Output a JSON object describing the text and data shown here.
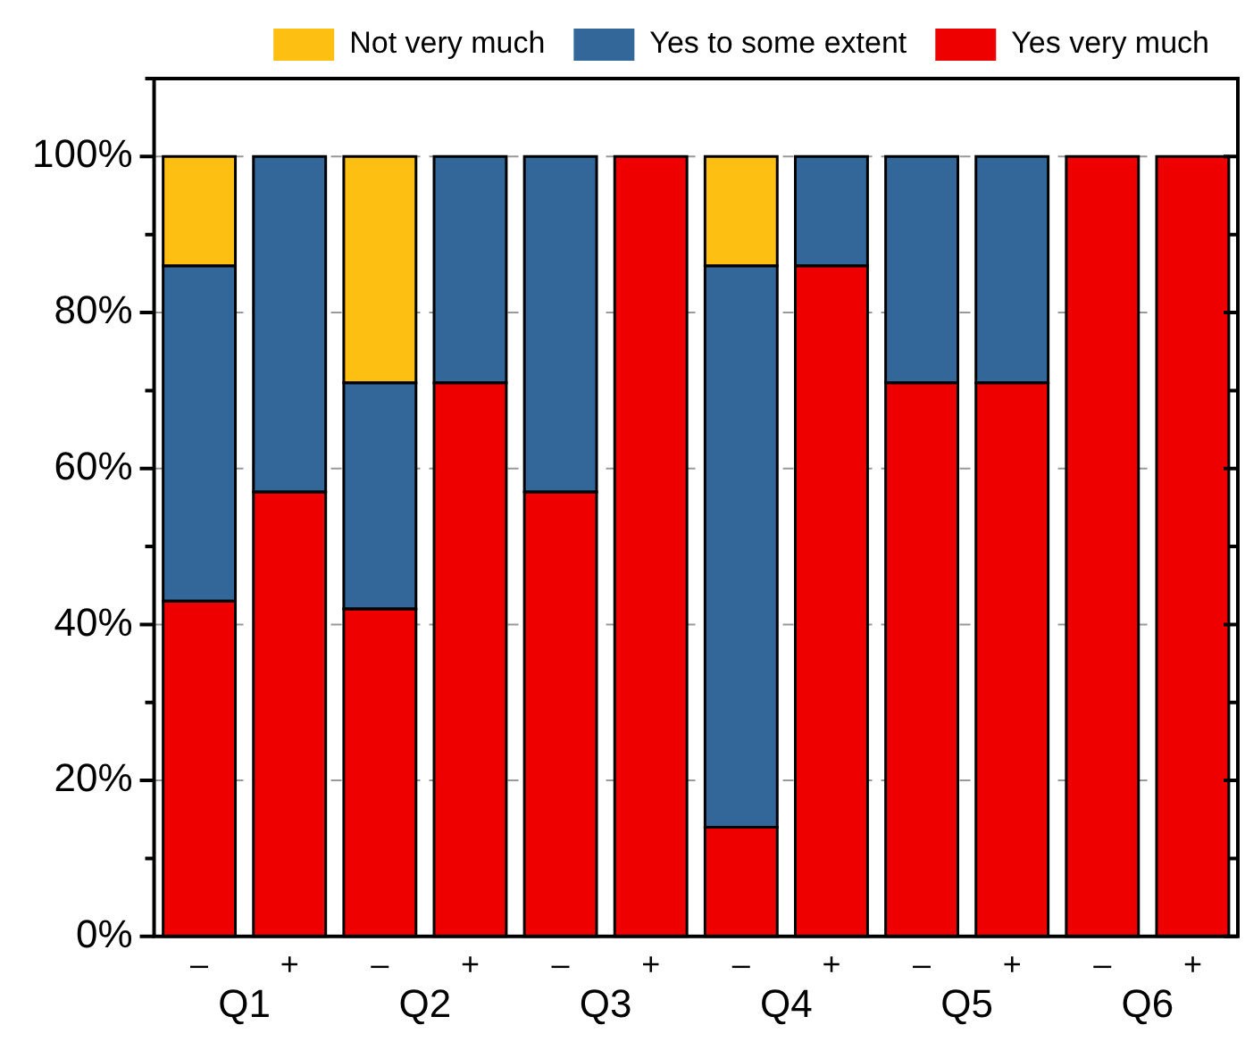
{
  "chart_data": {
    "type": "bar",
    "stacked": true,
    "legend": "top",
    "grid": "y",
    "categories": [
      "–",
      "+",
      "–",
      "+",
      "–",
      "+",
      "–",
      "+",
      "–",
      "+",
      "–",
      "+"
    ],
    "annotations": [
      "Q1",
      "Q2",
      "Q3",
      "Q4",
      "Q5",
      "Q6"
    ],
    "series": [
      {
        "name": "Yes very much",
        "color": "#ee0000",
        "values": [
          43,
          57,
          42,
          71,
          57,
          100,
          14,
          86,
          71,
          71,
          100,
          100
        ]
      },
      {
        "name": "Yes to some extent",
        "color": "#336699",
        "values": [
          43,
          43,
          29,
          29,
          43,
          null,
          72,
          14,
          29,
          29,
          null,
          null
        ]
      },
      {
        "name": "Not very much",
        "color": "#fcbf12",
        "values": [
          14,
          null,
          29,
          null,
          null,
          null,
          14,
          null,
          null,
          null,
          null,
          null
        ]
      }
    ],
    "ylim": [
      0,
      110
    ],
    "yticks": [
      {
        "value": 0,
        "label": "0%"
      },
      {
        "value": 10,
        "label": null
      },
      {
        "value": 20,
        "label": "20%"
      },
      {
        "value": 30,
        "label": null
      },
      {
        "value": 40,
        "label": "40%"
      },
      {
        "value": 50,
        "label": null
      },
      {
        "value": 60,
        "label": "60%"
      },
      {
        "value": 70,
        "label": null
      },
      {
        "value": 80,
        "label": "80%"
      },
      {
        "value": 90,
        "label": null
      },
      {
        "value": 100,
        "label": "100%"
      },
      {
        "value": 110,
        "label": null
      }
    ]
  }
}
